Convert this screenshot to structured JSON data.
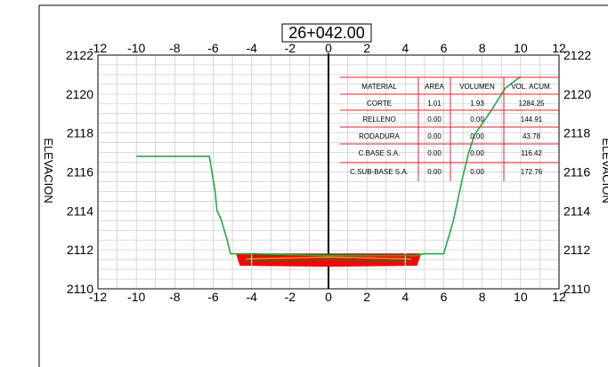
{
  "station_label": "26+042.00",
  "chart_data": {
    "type": "line",
    "title": "26+042.00",
    "ylabel": "ELEVACION",
    "xlabel": "",
    "xlim": [
      -12,
      12
    ],
    "ylim": [
      2110,
      2122
    ],
    "x_ticks": [
      -12,
      -10,
      -8,
      -6,
      -4,
      -2,
      0,
      2,
      4,
      6,
      8,
      10,
      12
    ],
    "y_ticks": [
      2110,
      2112,
      2114,
      2116,
      2118,
      2120,
      2122
    ],
    "grid": true,
    "terrain_profile": [
      [
        -10.0,
        2116.8
      ],
      [
        -6.2,
        2116.8
      ],
      [
        -5.9,
        2115.0
      ],
      [
        -5.8,
        2114.0
      ],
      [
        -5.6,
        2113.6
      ],
      [
        -5.3,
        2112.6
      ],
      [
        -5.1,
        2111.8
      ],
      [
        -3.8,
        2111.8
      ],
      [
        0.0,
        2111.7
      ],
      [
        4.5,
        2111.7
      ],
      [
        5.0,
        2111.8
      ],
      [
        6.0,
        2111.8
      ],
      [
        6.5,
        2113.5
      ],
      [
        7.0,
        2115.8
      ],
      [
        7.3,
        2117.0
      ],
      [
        7.6,
        2117.9
      ],
      [
        8.5,
        2119.2
      ],
      [
        9.2,
        2120.3
      ],
      [
        10.0,
        2120.9
      ]
    ],
    "pavement_section": {
      "left_edge": -4.6,
      "right_edge": 4.6,
      "centerline_x": 0,
      "top": 2111.8,
      "bottom": 2111.2
    },
    "table": {
      "headers": [
        "MATERIAL",
        "AREA",
        "VOLUMEN",
        "VOL. ACUM."
      ],
      "rows": [
        [
          "CORTE",
          "1.01",
          "1.93",
          "1284.25"
        ],
        [
          "RELLENO",
          "0.00",
          "0.00",
          "144.91"
        ],
        [
          "RODADURA",
          "0.00",
          "0.00",
          "43.78"
        ],
        [
          "C.BASE S.A.",
          "0.00",
          "0.00",
          "116.42"
        ],
        [
          "C.SUB-BASE S.A.",
          "0.00",
          "0.00",
          "172.76"
        ]
      ]
    },
    "colors": {
      "grid": "#c8c8c8",
      "terrain": "#22aa44",
      "table_lines": "#e0242c",
      "fill": "#ff0000",
      "centerline": "#000000"
    }
  }
}
